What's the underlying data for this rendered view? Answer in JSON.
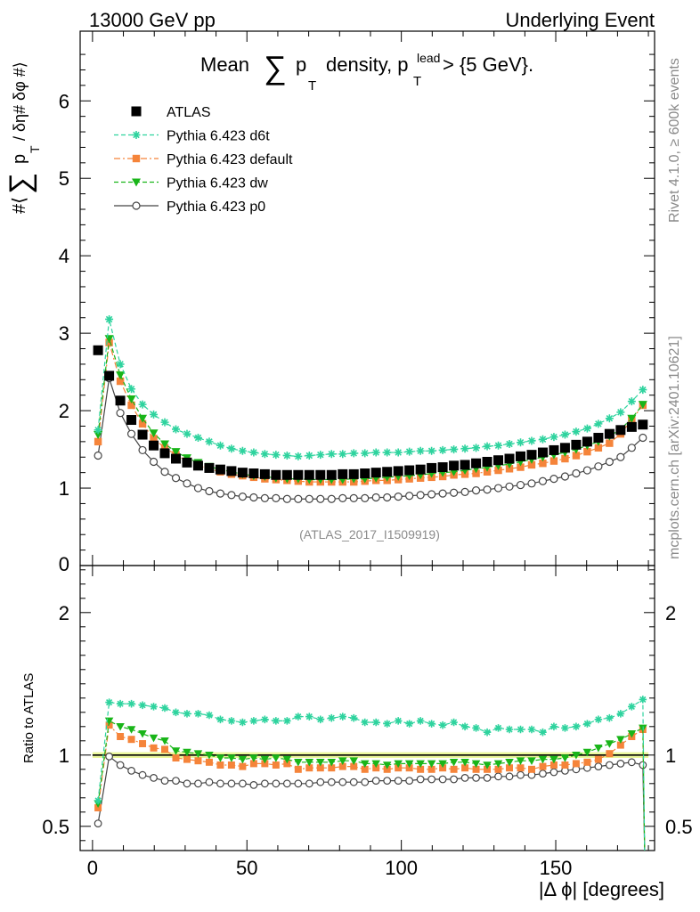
{
  "header": {
    "left": "13000 GeV pp",
    "right": "Underlying Event"
  },
  "side": {
    "rivet": "Rivet 4.1.0, ≥ 600k events",
    "mcplots": "mcplots.cern.ch [arXiv:2401.10621]"
  },
  "chart_data": {
    "type": "line",
    "title": {
      "prefix": "Mean",
      "sum": "∑",
      "p": "p",
      "sub": "T",
      "mid": "density, p",
      "sup": "lead",
      "sub2": "T",
      "suffix": "> {5 GeV}."
    },
    "ylabel": {
      "prefix": "#⟨",
      "sum": "∑",
      "p": "p",
      "sub": "T",
      "suffix": "/ δη# δφ #⟩"
    },
    "xlabel": "|Δ ϕ| [degrees]",
    "ratio_ylabel": "Ratio to ATLAS",
    "watermark": "(ATLAS_2017_I1509919)",
    "xlim": [
      -4,
      182
    ],
    "ylim": [
      0,
      6.9
    ],
    "ratio_ylim": [
      0.33,
      2.33
    ],
    "xticks": [
      0,
      50,
      100,
      150
    ],
    "yticks": [
      1,
      2,
      3,
      4,
      5,
      6
    ],
    "yticks_zero": "0",
    "ratio_yticks": [
      {
        "v": 0.5,
        "label": "0.5"
      },
      {
        "v": 1,
        "label": "1"
      },
      {
        "v": 2,
        "label": "2"
      }
    ],
    "colors": {
      "ATLAS": "#000000",
      "d6t": "#2ed39e",
      "default": "#f5843a",
      "dw": "#19b519",
      "p0": "#444444",
      "band": "#eaf79a"
    },
    "x": [
      1.8,
      5.4,
      9,
      12.6,
      16.2,
      19.8,
      23.4,
      27,
      30.6,
      34.2,
      37.8,
      41.4,
      45,
      48.6,
      52.2,
      55.8,
      59.4,
      63,
      66.6,
      70.2,
      73.8,
      77.4,
      81,
      84.6,
      88.2,
      91.8,
      95.4,
      99,
      102.6,
      106.2,
      109.8,
      113.4,
      117,
      120.6,
      124.2,
      127.8,
      131.4,
      135,
      138.6,
      142.2,
      145.8,
      149.4,
      153,
      156.6,
      160.2,
      163.8,
      167.4,
      171,
      174.6,
      178.2
    ],
    "series": [
      {
        "name": "ATLAS",
        "marker": "square",
        "values": [
          2.78,
          2.45,
          2.13,
          1.88,
          1.69,
          1.55,
          1.45,
          1.38,
          1.33,
          1.29,
          1.26,
          1.24,
          1.22,
          1.2,
          1.19,
          1.18,
          1.17,
          1.17,
          1.17,
          1.17,
          1.17,
          1.17,
          1.18,
          1.18,
          1.19,
          1.2,
          1.21,
          1.22,
          1.23,
          1.24,
          1.26,
          1.27,
          1.29,
          1.3,
          1.32,
          1.34,
          1.36,
          1.38,
          1.41,
          1.43,
          1.46,
          1.49,
          1.52,
          1.56,
          1.6,
          1.65,
          1.7,
          1.75,
          1.79,
          1.82
        ]
      },
      {
        "name": "Pythia 6.423 d6t",
        "marker": "star",
        "values": [
          1.75,
          3.18,
          2.6,
          2.28,
          2.08,
          1.95,
          1.85,
          1.76,
          1.7,
          1.65,
          1.6,
          1.55,
          1.51,
          1.48,
          1.46,
          1.44,
          1.43,
          1.42,
          1.41,
          1.42,
          1.43,
          1.44,
          1.44,
          1.45,
          1.45,
          1.46,
          1.46,
          1.46,
          1.47,
          1.48,
          1.48,
          1.49,
          1.5,
          1.51,
          1.52,
          1.54,
          1.55,
          1.57,
          1.59,
          1.61,
          1.63,
          1.66,
          1.69,
          1.73,
          1.77,
          1.83,
          1.9,
          1.98,
          2.12,
          2.27
        ]
      },
      {
        "name": "Pythia 6.423 default",
        "marker": "square",
        "values": [
          1.6,
          2.88,
          2.38,
          2.07,
          1.83,
          1.64,
          1.52,
          1.43,
          1.35,
          1.29,
          1.25,
          1.21,
          1.18,
          1.16,
          1.14,
          1.12,
          1.11,
          1.1,
          1.09,
          1.08,
          1.08,
          1.08,
          1.08,
          1.08,
          1.09,
          1.1,
          1.1,
          1.11,
          1.12,
          1.13,
          1.14,
          1.15,
          1.17,
          1.18,
          1.19,
          1.21,
          1.23,
          1.25,
          1.27,
          1.3,
          1.32,
          1.35,
          1.38,
          1.42,
          1.47,
          1.52,
          1.58,
          1.7,
          1.88,
          2.07
        ]
      },
      {
        "name": "Pythia 6.423 dw",
        "marker": "triangle-down",
        "values": [
          1.69,
          2.93,
          2.46,
          2.15,
          1.9,
          1.71,
          1.57,
          1.47,
          1.39,
          1.33,
          1.28,
          1.24,
          1.21,
          1.18,
          1.16,
          1.15,
          1.13,
          1.12,
          1.12,
          1.11,
          1.11,
          1.11,
          1.11,
          1.12,
          1.12,
          1.13,
          1.14,
          1.15,
          1.16,
          1.17,
          1.19,
          1.2,
          1.21,
          1.23,
          1.25,
          1.27,
          1.29,
          1.31,
          1.34,
          1.37,
          1.4,
          1.43,
          1.46,
          1.5,
          1.55,
          1.6,
          1.67,
          1.76,
          1.9,
          2.08
        ]
      },
      {
        "name": "Pythia 6.423 p0",
        "marker": "open-circle",
        "values": [
          1.42,
          2.42,
          1.97,
          1.7,
          1.49,
          1.34,
          1.21,
          1.13,
          1.06,
          1.0,
          0.96,
          0.93,
          0.91,
          0.89,
          0.88,
          0.87,
          0.87,
          0.86,
          0.86,
          0.86,
          0.86,
          0.86,
          0.87,
          0.87,
          0.87,
          0.88,
          0.88,
          0.89,
          0.9,
          0.91,
          0.92,
          0.93,
          0.94,
          0.95,
          0.97,
          0.98,
          1.0,
          1.02,
          1.04,
          1.06,
          1.09,
          1.12,
          1.15,
          1.19,
          1.23,
          1.28,
          1.34,
          1.4,
          1.52,
          1.65
        ]
      }
    ],
    "ratio": [
      {
        "name": "Pythia 6.423 d6t",
        "values": [
          0.68,
          1.37,
          1.36,
          1.36,
          1.35,
          1.34,
          1.33,
          1.3,
          1.29,
          1.29,
          1.28,
          1.25,
          1.24,
          1.23,
          1.24,
          1.25,
          1.24,
          1.24,
          1.27,
          1.27,
          1.25,
          1.26,
          1.27,
          1.26,
          1.23,
          1.23,
          1.22,
          1.24,
          1.22,
          1.24,
          1.22,
          1.21,
          1.23,
          1.2,
          1.19,
          1.16,
          1.19,
          1.18,
          1.18,
          1.18,
          1.16,
          1.2,
          1.19,
          1.2,
          1.22,
          1.25,
          1.26,
          1.29,
          1.34,
          1.39
        ]
      },
      {
        "name": "Pythia 6.423 default",
        "values": [
          0.63,
          1.21,
          1.13,
          1.11,
          1.08,
          1.05,
          1.04,
          0.98,
          0.97,
          0.96,
          0.95,
          0.93,
          0.93,
          0.92,
          0.94,
          0.94,
          0.93,
          0.94,
          0.9,
          0.91,
          0.91,
          0.91,
          0.92,
          0.92,
          0.9,
          0.91,
          0.9,
          0.91,
          0.91,
          0.9,
          0.9,
          0.91,
          0.9,
          0.91,
          0.9,
          0.9,
          0.9,
          0.91,
          0.91,
          0.9,
          0.92,
          0.93,
          0.93,
          0.94,
          0.95,
          0.97,
          1.01,
          1.07,
          1.13,
          1.18
        ]
      },
      {
        "name": "Pythia 6.423 dw",
        "values": [
          0.66,
          1.24,
          1.2,
          1.18,
          1.15,
          1.12,
          1.1,
          1.03,
          1.02,
          1.01,
          1.0,
          0.98,
          0.98,
          0.97,
          0.98,
          0.97,
          0.98,
          0.97,
          0.95,
          0.95,
          0.95,
          0.95,
          0.96,
          0.96,
          0.94,
          0.94,
          0.93,
          0.94,
          0.94,
          0.94,
          0.94,
          0.94,
          0.95,
          0.95,
          0.94,
          0.93,
          0.94,
          0.95,
          0.96,
          0.96,
          0.97,
          0.97,
          0.98,
          1.0,
          1.02,
          1.05,
          1.08,
          1.11,
          1.15,
          1.19
        ]
      },
      {
        "name": "Pythia 6.423 p0",
        "values": [
          0.52,
          0.99,
          0.93,
          0.89,
          0.86,
          0.84,
          0.82,
          0.82,
          0.8,
          0.8,
          0.81,
          0.8,
          0.8,
          0.8,
          0.79,
          0.8,
          0.8,
          0.8,
          0.8,
          0.8,
          0.81,
          0.81,
          0.81,
          0.81,
          0.81,
          0.82,
          0.82,
          0.82,
          0.82,
          0.83,
          0.83,
          0.83,
          0.83,
          0.84,
          0.84,
          0.84,
          0.85,
          0.85,
          0.86,
          0.86,
          0.87,
          0.88,
          0.89,
          0.9,
          0.91,
          0.92,
          0.93,
          0.94,
          0.95,
          0.93
        ]
      }
    ],
    "ratio_last_drop": 0.0,
    "legend": [
      {
        "name": "ATLAS",
        "marker": "square",
        "line": "none"
      },
      {
        "name": "Pythia 6.423 d6t",
        "marker": "star",
        "line": "dashed"
      },
      {
        "name": "Pythia 6.423 default",
        "marker": "square",
        "line": "dashdot"
      },
      {
        "name": "Pythia 6.423 dw",
        "marker": "triangle-down",
        "line": "dashed"
      },
      {
        "name": "Pythia 6.423 p0",
        "marker": "open-circle",
        "line": "solid"
      }
    ],
    "legend_position": "top-left"
  }
}
